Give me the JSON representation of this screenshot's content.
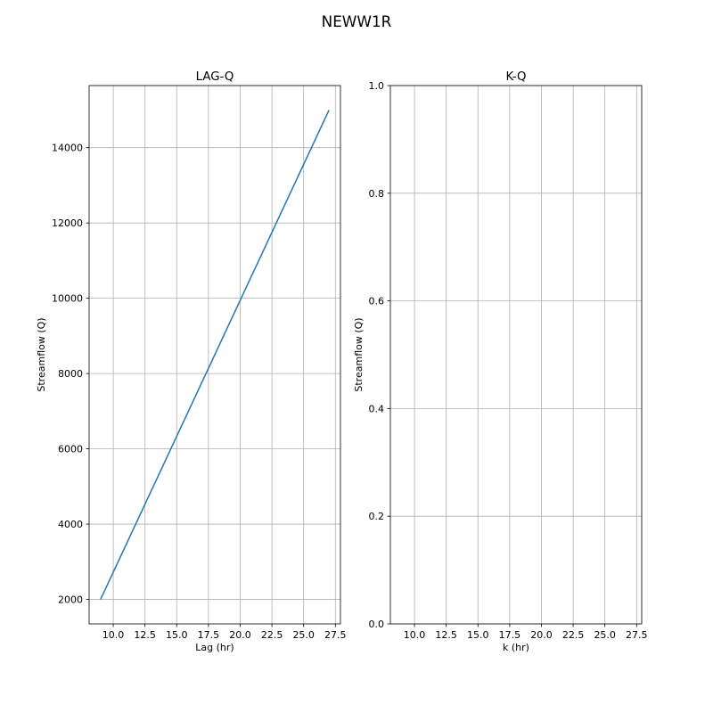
{
  "suptitle": "NEWW1R",
  "chart_data": [
    {
      "type": "line",
      "title": "LAG-Q",
      "xlabel": "Lag (hr)",
      "ylabel": "Streamflow (Q)",
      "xlim": [
        8.1,
        27.9
      ],
      "ylim": [
        1350,
        15650
      ],
      "xticks": [
        10.0,
        12.5,
        15.0,
        17.5,
        20.0,
        22.5,
        25.0,
        27.5
      ],
      "xtick_labels": [
        "10.0",
        "12.5",
        "15.0",
        "17.5",
        "20.0",
        "22.5",
        "25.0",
        "27.5"
      ],
      "yticks": [
        2000,
        4000,
        6000,
        8000,
        10000,
        12000,
        14000
      ],
      "ytick_labels": [
        "2000",
        "4000",
        "6000",
        "8000",
        "10000",
        "12000",
        "14000"
      ],
      "grid": true,
      "series": [
        {
          "color": "#1f77b4",
          "x": [
            9.0,
            27.0
          ],
          "y": [
            2000,
            15000
          ]
        }
      ]
    },
    {
      "type": "line",
      "title": "K-Q",
      "xlabel": "k (hr)",
      "ylabel": "Streamflow (Q)",
      "xlim": [
        8.1,
        27.9
      ],
      "ylim": [
        0.0,
        1.0
      ],
      "xticks": [
        10.0,
        12.5,
        15.0,
        17.5,
        20.0,
        22.5,
        25.0,
        27.5
      ],
      "xtick_labels": [
        "10.0",
        "12.5",
        "15.0",
        "17.5",
        "20.0",
        "22.5",
        "25.0",
        "27.5"
      ],
      "yticks": [
        0.0,
        0.2,
        0.4,
        0.6,
        0.8,
        1.0
      ],
      "ytick_labels": [
        "0.0",
        "0.2",
        "0.4",
        "0.6",
        "0.8",
        "1.0"
      ],
      "grid": true,
      "series": []
    }
  ]
}
